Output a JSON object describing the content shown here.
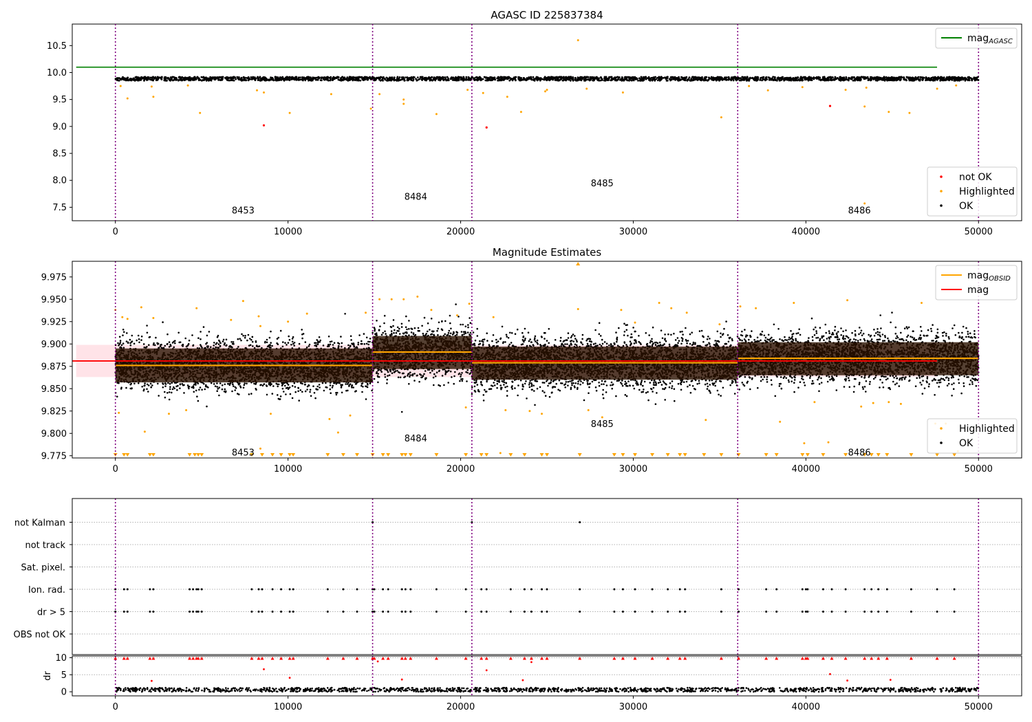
{
  "figure": {
    "title1": "AGASC ID 225837384",
    "title2": "Magnitude Estimates"
  },
  "colors": {
    "ok": "#000000",
    "highlighted": "#ffa500",
    "not_ok": "#ff0000",
    "agasc": "#008000",
    "mag": "#ff0000",
    "mag_obsid": "#ffa500",
    "band": "#ffc0cb",
    "obs_boundary": "#800080",
    "obsid_box": "#2a1200"
  },
  "chart_data": [
    {
      "type": "scatter",
      "title": "AGASC ID 225837384",
      "xlim": [
        -2500,
        52500
      ],
      "ylim": [
        7.25,
        10.9
      ],
      "xticks": [
        0,
        10000,
        20000,
        30000,
        40000,
        50000
      ],
      "yticks": [
        7.5,
        8.0,
        8.5,
        9.0,
        9.5,
        10.0,
        10.5
      ],
      "ytick_labels": [
        "7.5",
        "8.0",
        "8.5",
        "9.0",
        "9.5",
        "10.0",
        "10.5"
      ],
      "obs_boundaries": [
        0,
        14900,
        20650,
        36050,
        50000
      ],
      "obsid_labels": [
        {
          "text": "8453",
          "x": 7400,
          "y": 7.45
        },
        {
          "text": "8484",
          "x": 17400,
          "y": 7.7
        },
        {
          "text": "8485",
          "x": 28200,
          "y": 7.95
        },
        {
          "text": "8486",
          "x": 43100,
          "y": 7.45
        }
      ],
      "series": [
        {
          "name": "mag_AGASC",
          "type": "hline",
          "y": 10.1,
          "xmin": -2500,
          "xmax": 52500
        },
        {
          "name": "OK",
          "type": "band_scatter",
          "y_center": 9.885,
          "spread": 0.035,
          "x_range": [
            0,
            50000
          ]
        },
        {
          "name": "not OK",
          "type": "points",
          "x": [
            8600,
            21500,
            41400
          ],
          "y": [
            9.02,
            8.98,
            9.38
          ]
        },
        {
          "name": "Highlighted",
          "type": "points",
          "x": [
            300,
            700,
            2100,
            2200,
            4200,
            4900,
            8200,
            8600,
            10100,
            12500,
            14800,
            15300,
            16700,
            16700,
            18600,
            20400,
            21300,
            22700,
            23500,
            24900,
            25000,
            26800,
            27300,
            29400,
            35100,
            36700,
            37800,
            39800,
            42300,
            43400,
            43400,
            43500,
            44800,
            46000,
            47600,
            48700
          ],
          "y": [
            9.75,
            9.52,
            9.74,
            9.55,
            9.76,
            9.25,
            9.67,
            9.63,
            9.25,
            9.6,
            9.33,
            9.6,
            9.5,
            9.42,
            9.23,
            9.68,
            9.62,
            9.55,
            9.27,
            9.65,
            9.68,
            10.6,
            9.7,
            9.63,
            9.17,
            9.75,
            9.67,
            9.73,
            9.68,
            7.57,
            9.37,
            9.72,
            9.27,
            9.25,
            9.7,
            9.76
          ]
        }
      ],
      "legends": [
        {
          "position": "top-right",
          "entries": [
            {
              "label": "mag",
              "sub": "AGASC",
              "kind": "line",
              "color": "#008000"
            }
          ]
        },
        {
          "position": "lower-right",
          "entries": [
            {
              "label": "not OK",
              "kind": "dot",
              "color": "#ff0000"
            },
            {
              "label": "Highlighted",
              "kind": "dot",
              "color": "#ffa500"
            },
            {
              "label": "OK",
              "kind": "dot",
              "color": "#000000"
            }
          ]
        }
      ]
    },
    {
      "type": "scatter",
      "title": "Magnitude Estimates",
      "xlim": [
        -2500,
        52500
      ],
      "ylim": [
        9.7725,
        9.9925
      ],
      "xticks": [
        0,
        10000,
        20000,
        30000,
        40000,
        50000
      ],
      "yticks": [
        9.775,
        9.8,
        9.825,
        9.85,
        9.875,
        9.9,
        9.925,
        9.95,
        9.975
      ],
      "ytick_labels": [
        "9.775",
        "9.800",
        "9.825",
        "9.850",
        "9.875",
        "9.900",
        "9.925",
        "9.950",
        "9.975"
      ],
      "obs_boundaries": [
        0,
        14900,
        20650,
        36050,
        50000
      ],
      "obsid_labels": [
        {
          "text": "8453",
          "x": 7400,
          "y": 9.779
        },
        {
          "text": "8484",
          "x": 17400,
          "y": 9.795
        },
        {
          "text": "8485",
          "x": 28200,
          "y": 9.811
        },
        {
          "text": "8486",
          "x": 43100,
          "y": 9.779
        }
      ],
      "mag": {
        "value": 9.881,
        "band": [
          9.863,
          9.899
        ],
        "x_range": [
          -2500,
          52500
        ]
      },
      "obsids": [
        {
          "x_range": [
            0,
            14900
          ],
          "mag": 9.876,
          "box": [
            9.857,
            9.895
          ],
          "spread": 0.03
        },
        {
          "x_range": [
            14900,
            20650
          ],
          "mag": 9.891,
          "box": [
            9.872,
            9.909
          ],
          "spread": 0.031
        },
        {
          "x_range": [
            20650,
            36050
          ],
          "mag": 9.879,
          "box": [
            9.86,
            9.897
          ],
          "spread": 0.031
        },
        {
          "x_range": [
            36050,
            50000
          ],
          "mag": 9.884,
          "box": [
            9.865,
            9.902
          ],
          "spread": 0.03
        }
      ],
      "series": [
        {
          "name": "OK",
          "type": "band_scatter"
        },
        {
          "name": "Highlighted",
          "type": "points",
          "x": [
            0,
            200,
            400,
            700,
            1500,
            1700,
            2200,
            3100,
            4100,
            4700,
            6700,
            7400,
            8300,
            8400,
            8400,
            9000,
            10000,
            11100,
            12400,
            12900,
            13600,
            14500,
            15300,
            16000,
            16700,
            17500,
            18300,
            19800,
            20300,
            20500,
            21900,
            22300,
            22600,
            24000,
            24700,
            26800,
            27400,
            28200,
            29300,
            30100,
            31500,
            32200,
            33100,
            34200,
            35000,
            36200,
            37100,
            38500,
            39300,
            39900,
            40500,
            41300,
            42400,
            43200,
            43900,
            44800,
            45500,
            46700,
            47500,
            48100,
            48800
          ],
          "y": [
            9.938,
            9.823,
            9.93,
            9.928,
            9.941,
            9.802,
            9.929,
            9.822,
            9.826,
            9.94,
            9.927,
            9.948,
            9.931,
            9.783,
            9.92,
            9.822,
            9.925,
            9.934,
            9.816,
            9.801,
            9.82,
            9.935,
            9.95,
            9.95,
            9.95,
            9.953,
            9.938,
            9.932,
            9.829,
            9.945,
            9.93,
            9.778,
            9.826,
            9.825,
            9.822,
            9.939,
            9.826,
            9.818,
            9.938,
            9.924,
            9.946,
            9.94,
            9.935,
            9.815,
            9.922,
            9.942,
            9.94,
            9.813,
            9.946,
            9.789,
            9.835,
            9.79,
            9.949,
            9.83,
            9.834,
            9.835,
            9.833,
            9.946,
            9.811,
            9.811,
            9.78
          ]
        },
        {
          "name": "Highlighted (off-scale)",
          "type": "triangles",
          "x_low": [
            0,
            500,
            700,
            2000,
            2200,
            4300,
            4600,
            4800,
            5000,
            7900,
            8500,
            9100,
            9600,
            10100,
            10300,
            12300,
            13200,
            14000,
            14900,
            15500,
            15800,
            16600,
            16800,
            17100,
            18600,
            20300,
            21200,
            21500,
            22900,
            23700,
            24700,
            25000,
            26900,
            28900,
            29400,
            30100,
            31100,
            32000,
            32700,
            33000,
            34100,
            35100,
            36100,
            37700,
            38300,
            39800,
            40100,
            41000,
            42300,
            43400,
            43800,
            44200,
            44700,
            46100,
            47600,
            48600
          ],
          "x_high": [
            26800
          ]
        }
      ],
      "legends": [
        {
          "position": "top-right",
          "entries": [
            {
              "label": "mag",
              "sub": "OBSID",
              "kind": "line",
              "color": "#ffa500"
            },
            {
              "label": "mag",
              "kind": "line",
              "color": "#ff0000"
            }
          ]
        },
        {
          "position": "lower-right",
          "entries": [
            {
              "label": "Highlighted",
              "kind": "dot",
              "color": "#ffa500"
            },
            {
              "label": "OK",
              "kind": "dot",
              "color": "#000000"
            }
          ]
        }
      ]
    },
    {
      "type": "scatter",
      "title": "",
      "xlim": [
        -2500,
        52500
      ],
      "categories": [
        "OBS not OK",
        "dr > 5",
        "Ion. rad.",
        "Sat. pixel.",
        "not track",
        "not Kalman"
      ],
      "flag_x": {
        "dr > 5": [
          0,
          500,
          700,
          2000,
          2200,
          4300,
          4500,
          4700,
          4800,
          5000,
          7900,
          8300,
          8500,
          9100,
          9600,
          10100,
          10300,
          12300,
          13200,
          14000,
          14900,
          15000,
          15500,
          15800,
          16600,
          16800,
          17100,
          18600,
          20300,
          21200,
          21500,
          22900,
          23700,
          24100,
          24700,
          25000,
          26900,
          28900,
          29400,
          30100,
          31100,
          32000,
          32700,
          33000,
          35100,
          36100,
          37700,
          38300,
          39800,
          40000,
          40100,
          41000,
          41500,
          42300,
          43400,
          43800,
          44200,
          44700,
          46100,
          47600,
          48600
        ],
        "Ion. rad.": [
          0,
          500,
          700,
          2000,
          2200,
          4300,
          4500,
          4700,
          4800,
          5000,
          7900,
          8300,
          8500,
          9100,
          9600,
          10100,
          10300,
          12300,
          13200,
          14000,
          14900,
          15000,
          15500,
          15800,
          16600,
          16800,
          17100,
          18600,
          20300,
          21200,
          21500,
          22900,
          23700,
          24100,
          24700,
          25000,
          26900,
          28900,
          29400,
          30100,
          31100,
          32000,
          32700,
          33000,
          35100,
          36100,
          37700,
          38300,
          39800,
          40000,
          40100,
          41000,
          41500,
          42300,
          43400,
          43800,
          44200,
          44700,
          46100,
          47600,
          48600
        ],
        "not Kalman": [
          14900,
          20650,
          26900
        ]
      },
      "sub": {
        "ylabel": "dr",
        "yticks": [
          0,
          5,
          10
        ],
        "ylim": [
          -1.2,
          10.5
        ],
        "xticks": [
          0,
          10000,
          20000,
          30000,
          40000,
          50000
        ],
        "dr_ok_level": [
          0,
          1.2
        ],
        "dr_high_x": [
          0,
          500,
          700,
          2000,
          2200,
          4300,
          4500,
          4700,
          4800,
          5000,
          7900,
          8300,
          8500,
          9100,
          9600,
          10100,
          10300,
          12300,
          13200,
          14000,
          14900,
          15000,
          15500,
          15800,
          16600,
          16800,
          17100,
          18600,
          20300,
          21200,
          21500,
          22900,
          23700,
          24100,
          24700,
          25000,
          26900,
          28900,
          29400,
          30100,
          31100,
          32000,
          32700,
          33000,
          35100,
          36100,
          37700,
          38300,
          39800,
          40000,
          40100,
          41000,
          41500,
          42300,
          43400,
          43800,
          44200,
          44700,
          46100,
          47600,
          48600
        ],
        "dr_mid": [
          [
            2100,
            3.2
          ],
          [
            8600,
            6.6
          ],
          [
            10100,
            4.1
          ],
          [
            16600,
            3.6
          ],
          [
            21500,
            6.3
          ],
          [
            23600,
            3.4
          ],
          [
            24100,
            8.7
          ],
          [
            41400,
            5.2
          ],
          [
            42400,
            3.3
          ],
          [
            44900,
            3.5
          ],
          [
            15200,
            8.9
          ]
        ]
      }
    }
  ]
}
